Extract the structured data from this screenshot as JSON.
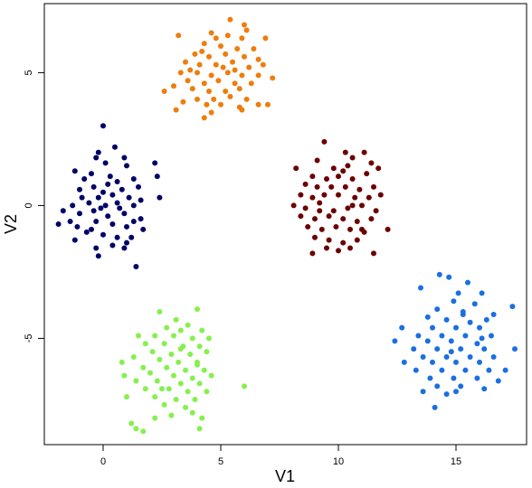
{
  "chart_data": {
    "type": "scatter",
    "xlabel": "V1",
    "ylabel": "V2",
    "xlim": [
      -2.5,
      18
    ],
    "ylim": [
      -9,
      7.6
    ],
    "xticks": [
      0,
      5,
      10,
      15
    ],
    "yticks": [
      -5,
      0,
      5
    ],
    "grid": false,
    "legend": "none",
    "series": [
      {
        "color": "#000066",
        "points": [
          [
            0.0,
            3.0
          ],
          [
            0.5,
            2.2
          ],
          [
            -0.2,
            2.0
          ],
          [
            -0.3,
            1.8
          ],
          [
            0.1,
            1.6
          ],
          [
            0.9,
            1.8
          ],
          [
            1.0,
            1.5
          ],
          [
            2.2,
            1.6
          ],
          [
            -1.2,
            1.3
          ],
          [
            -0.5,
            1.2
          ],
          [
            -0.8,
            1.0
          ],
          [
            0.3,
            1.1
          ],
          [
            0.6,
            0.9
          ],
          [
            1.3,
            1.0
          ],
          [
            2.3,
            1.1
          ],
          [
            -1.0,
            0.6
          ],
          [
            -0.4,
            0.7
          ],
          [
            0.0,
            0.5
          ],
          [
            0.8,
            0.6
          ],
          [
            1.5,
            0.7
          ],
          [
            -0.9,
            0.3
          ],
          [
            -0.2,
            0.3
          ],
          [
            0.4,
            0.4
          ],
          [
            1.1,
            0.3
          ],
          [
            1.6,
            0.2
          ],
          [
            2.4,
            0.3
          ],
          [
            -1.3,
            0.0
          ],
          [
            -0.6,
            0.1
          ],
          [
            0.1,
            0.0
          ],
          [
            0.7,
            -0.1
          ],
          [
            1.3,
            0.0
          ],
          [
            -1.7,
            -0.2
          ],
          [
            -1.0,
            -0.3
          ],
          [
            -0.4,
            -0.2
          ],
          [
            0.2,
            -0.4
          ],
          [
            0.9,
            -0.3
          ],
          [
            1.6,
            -0.5
          ],
          [
            -1.9,
            -0.7
          ],
          [
            -1.1,
            -0.8
          ],
          [
            -0.3,
            -0.6
          ],
          [
            0.4,
            -0.7
          ],
          [
            1.0,
            -0.8
          ],
          [
            1.7,
            -0.9
          ],
          [
            -0.7,
            -1.0
          ],
          [
            0.0,
            -1.1
          ],
          [
            0.6,
            -1.2
          ],
          [
            1.2,
            -1.2
          ],
          [
            -0.3,
            -1.6
          ],
          [
            0.4,
            -1.5
          ],
          [
            1.0,
            -1.4
          ],
          [
            -0.2,
            -1.9
          ],
          [
            1.4,
            -2.3
          ],
          [
            -1.4,
            -0.6
          ],
          [
            0.2,
            0.8
          ],
          [
            -0.5,
            -0.9
          ],
          [
            0.6,
            0.1
          ],
          [
            1.3,
            -0.6
          ],
          [
            -1.2,
            -1.3
          ],
          [
            0.9,
            -1.6
          ],
          [
            -0.1,
            -0.1
          ]
        ]
      },
      {
        "color": "#ee7d0d",
        "points": [
          [
            5.4,
            7.0
          ],
          [
            6.0,
            6.8
          ],
          [
            6.1,
            6.6
          ],
          [
            3.2,
            6.4
          ],
          [
            4.6,
            6.5
          ],
          [
            5.3,
            6.4
          ],
          [
            5.9,
            6.3
          ],
          [
            6.9,
            6.3
          ],
          [
            4.3,
            6.1
          ],
          [
            5.0,
            6.0
          ],
          [
            5.7,
            5.9
          ],
          [
            6.4,
            5.9
          ],
          [
            3.9,
            5.7
          ],
          [
            4.5,
            5.6
          ],
          [
            5.2,
            5.7
          ],
          [
            6.0,
            5.6
          ],
          [
            3.5,
            5.4
          ],
          [
            4.1,
            5.3
          ],
          [
            4.8,
            5.3
          ],
          [
            5.5,
            5.4
          ],
          [
            6.2,
            5.2
          ],
          [
            6.8,
            5.3
          ],
          [
            3.3,
            5.0
          ],
          [
            4.0,
            5.0
          ],
          [
            4.6,
            4.9
          ],
          [
            5.3,
            5.0
          ],
          [
            5.9,
            4.9
          ],
          [
            6.6,
            4.9
          ],
          [
            7.2,
            4.8
          ],
          [
            3.6,
            4.7
          ],
          [
            4.3,
            4.6
          ],
          [
            4.9,
            4.7
          ],
          [
            5.6,
            4.6
          ],
          [
            6.3,
            4.6
          ],
          [
            3.0,
            4.5
          ],
          [
            3.8,
            4.4
          ],
          [
            4.5,
            4.3
          ],
          [
            5.2,
            4.3
          ],
          [
            5.8,
            4.4
          ],
          [
            2.6,
            4.3
          ],
          [
            4.0,
            4.0
          ],
          [
            4.7,
            4.0
          ],
          [
            5.4,
            4.1
          ],
          [
            6.1,
            4.0
          ],
          [
            3.4,
            3.9
          ],
          [
            3.1,
            3.6
          ],
          [
            4.4,
            3.8
          ],
          [
            5.0,
            3.8
          ],
          [
            5.8,
            3.7
          ],
          [
            6.6,
            3.8
          ],
          [
            7.0,
            3.8
          ],
          [
            4.6,
            3.5
          ],
          [
            5.9,
            3.6
          ],
          [
            4.3,
            3.3
          ],
          [
            5.1,
            5.2
          ],
          [
            4.2,
            5.8
          ],
          [
            5.6,
            5.1
          ],
          [
            6.6,
            5.5
          ],
          [
            3.7,
            5.1
          ],
          [
            4.8,
            6.3
          ]
        ]
      },
      {
        "color": "#6b0000",
        "points": [
          [
            9.4,
            2.4
          ],
          [
            10.3,
            2.0
          ],
          [
            10.6,
            1.8
          ],
          [
            11.1,
            2.0
          ],
          [
            9.1,
            1.7
          ],
          [
            11.4,
            1.6
          ],
          [
            8.2,
            1.4
          ],
          [
            9.8,
            1.4
          ],
          [
            10.2,
            1.3
          ],
          [
            11.7,
            1.4
          ],
          [
            8.9,
            1.1
          ],
          [
            9.5,
            1.0
          ],
          [
            10.0,
            1.1
          ],
          [
            10.6,
            1.0
          ],
          [
            11.2,
            1.2
          ],
          [
            8.6,
            0.8
          ],
          [
            9.1,
            0.7
          ],
          [
            9.7,
            0.7
          ],
          [
            10.3,
            0.7
          ],
          [
            10.9,
            0.6
          ],
          [
            11.5,
            0.7
          ],
          [
            8.4,
            0.4
          ],
          [
            8.9,
            0.3
          ],
          [
            9.4,
            0.4
          ],
          [
            10.0,
            0.4
          ],
          [
            10.7,
            0.3
          ],
          [
            11.3,
            0.3
          ],
          [
            11.8,
            0.4
          ],
          [
            8.1,
            0.0
          ],
          [
            8.6,
            -0.1
          ],
          [
            9.2,
            0.1
          ],
          [
            9.8,
            -0.2
          ],
          [
            10.4,
            -0.1
          ],
          [
            11.0,
            0.0
          ],
          [
            11.6,
            -0.2
          ],
          [
            8.4,
            -0.4
          ],
          [
            9.0,
            -0.5
          ],
          [
            9.6,
            -0.4
          ],
          [
            10.2,
            -0.5
          ],
          [
            10.8,
            -0.6
          ],
          [
            11.4,
            -0.5
          ],
          [
            8.7,
            -0.8
          ],
          [
            9.3,
            -0.9
          ],
          [
            9.9,
            -0.8
          ],
          [
            10.5,
            -0.9
          ],
          [
            11.1,
            -1.0
          ],
          [
            12.1,
            -0.9
          ],
          [
            9.0,
            -1.2
          ],
          [
            9.6,
            -1.3
          ],
          [
            10.2,
            -1.4
          ],
          [
            10.8,
            -1.3
          ],
          [
            9.5,
            -1.6
          ],
          [
            10.0,
            -1.7
          ],
          [
            10.5,
            -1.6
          ],
          [
            11.5,
            -1.8
          ],
          [
            8.9,
            -1.8
          ],
          [
            10.4,
            1.5
          ],
          [
            9.2,
            -0.2
          ],
          [
            10.6,
            0.0
          ],
          [
            11.0,
            -0.9
          ]
        ]
      },
      {
        "color": "#1b6fe0",
        "points": [
          [
            14.3,
            -2.6
          ],
          [
            14.7,
            -2.7
          ],
          [
            15.5,
            -2.9
          ],
          [
            13.5,
            -3.1
          ],
          [
            15.1,
            -3.3
          ],
          [
            16.1,
            -3.3
          ],
          [
            14.9,
            -3.6
          ],
          [
            15.8,
            -3.7
          ],
          [
            17.4,
            -3.8
          ],
          [
            14.2,
            -3.9
          ],
          [
            15.3,
            -4.0
          ],
          [
            16.6,
            -4.1
          ],
          [
            13.8,
            -4.2
          ],
          [
            14.6,
            -4.3
          ],
          [
            15.6,
            -4.4
          ],
          [
            16.3,
            -4.3
          ],
          [
            12.7,
            -4.6
          ],
          [
            14.0,
            -4.6
          ],
          [
            15.0,
            -4.6
          ],
          [
            16.0,
            -4.6
          ],
          [
            13.4,
            -4.9
          ],
          [
            14.4,
            -4.9
          ],
          [
            15.4,
            -4.9
          ],
          [
            16.5,
            -4.9
          ],
          [
            12.4,
            -5.1
          ],
          [
            13.8,
            -5.1
          ],
          [
            14.8,
            -5.1
          ],
          [
            15.9,
            -5.2
          ],
          [
            13.2,
            -5.4
          ],
          [
            14.2,
            -5.4
          ],
          [
            15.2,
            -5.4
          ],
          [
            16.2,
            -5.4
          ],
          [
            17.5,
            -5.4
          ],
          [
            13.6,
            -5.7
          ],
          [
            14.6,
            -5.7
          ],
          [
            15.6,
            -5.7
          ],
          [
            16.6,
            -5.7
          ],
          [
            12.8,
            -5.9
          ],
          [
            14.0,
            -5.9
          ],
          [
            15.0,
            -5.9
          ],
          [
            16.0,
            -5.9
          ],
          [
            13.3,
            -6.2
          ],
          [
            14.4,
            -6.2
          ],
          [
            15.4,
            -6.2
          ],
          [
            16.4,
            -6.2
          ],
          [
            17.1,
            -6.2
          ],
          [
            13.9,
            -6.5
          ],
          [
            14.9,
            -6.5
          ],
          [
            15.9,
            -6.5
          ],
          [
            16.8,
            -6.6
          ],
          [
            14.2,
            -6.8
          ],
          [
            15.2,
            -6.8
          ],
          [
            16.2,
            -6.9
          ],
          [
            13.6,
            -7.0
          ],
          [
            14.6,
            -7.1
          ],
          [
            15.0,
            -7.0
          ],
          [
            14.1,
            -7.6
          ],
          [
            15.3,
            -4.1
          ],
          [
            14.8,
            -5.5
          ],
          [
            16.1,
            -5.0
          ]
        ]
      },
      {
        "color": "#86f04d",
        "points": [
          [
            2.4,
            -4.0
          ],
          [
            4.0,
            -3.9
          ],
          [
            3.1,
            -4.3
          ],
          [
            3.6,
            -4.5
          ],
          [
            2.7,
            -4.6
          ],
          [
            3.3,
            -4.7
          ],
          [
            4.2,
            -4.7
          ],
          [
            1.5,
            -4.9
          ],
          [
            2.2,
            -4.9
          ],
          [
            3.0,
            -4.9
          ],
          [
            3.8,
            -5.0
          ],
          [
            4.5,
            -5.0
          ],
          [
            1.8,
            -5.2
          ],
          [
            2.6,
            -5.2
          ],
          [
            3.4,
            -5.3
          ],
          [
            4.1,
            -5.3
          ],
          [
            2.1,
            -5.5
          ],
          [
            2.9,
            -5.6
          ],
          [
            3.7,
            -5.6
          ],
          [
            4.4,
            -5.5
          ],
          [
            1.3,
            -5.7
          ],
          [
            2.4,
            -5.8
          ],
          [
            3.2,
            -5.9
          ],
          [
            4.0,
            -5.9
          ],
          [
            1.7,
            -6.1
          ],
          [
            2.7,
            -6.1
          ],
          [
            3.5,
            -6.2
          ],
          [
            4.3,
            -6.2
          ],
          [
            0.9,
            -6.4
          ],
          [
            2.0,
            -6.3
          ],
          [
            3.0,
            -6.4
          ],
          [
            3.8,
            -6.5
          ],
          [
            4.6,
            -6.4
          ],
          [
            1.4,
            -6.6
          ],
          [
            2.3,
            -6.6
          ],
          [
            3.3,
            -6.7
          ],
          [
            4.1,
            -6.7
          ],
          [
            6.0,
            -6.8
          ],
          [
            1.8,
            -6.9
          ],
          [
            2.8,
            -6.9
          ],
          [
            3.6,
            -7.0
          ],
          [
            4.4,
            -7.0
          ],
          [
            2.2,
            -7.2
          ],
          [
            3.1,
            -7.3
          ],
          [
            3.9,
            -7.3
          ],
          [
            2.6,
            -7.5
          ],
          [
            3.5,
            -7.6
          ],
          [
            2.9,
            -7.9
          ],
          [
            3.8,
            -7.8
          ],
          [
            2.2,
            -8.0
          ],
          [
            4.2,
            -8.0
          ],
          [
            1.2,
            -8.2
          ],
          [
            1.4,
            -8.4
          ],
          [
            1.7,
            -8.5
          ],
          [
            4.1,
            -8.4
          ],
          [
            0.8,
            -5.9
          ],
          [
            1.0,
            -7.2
          ],
          [
            2.5,
            -6.9
          ],
          [
            3.3,
            -5.4
          ],
          [
            4.0,
            -6.0
          ]
        ]
      }
    ]
  }
}
